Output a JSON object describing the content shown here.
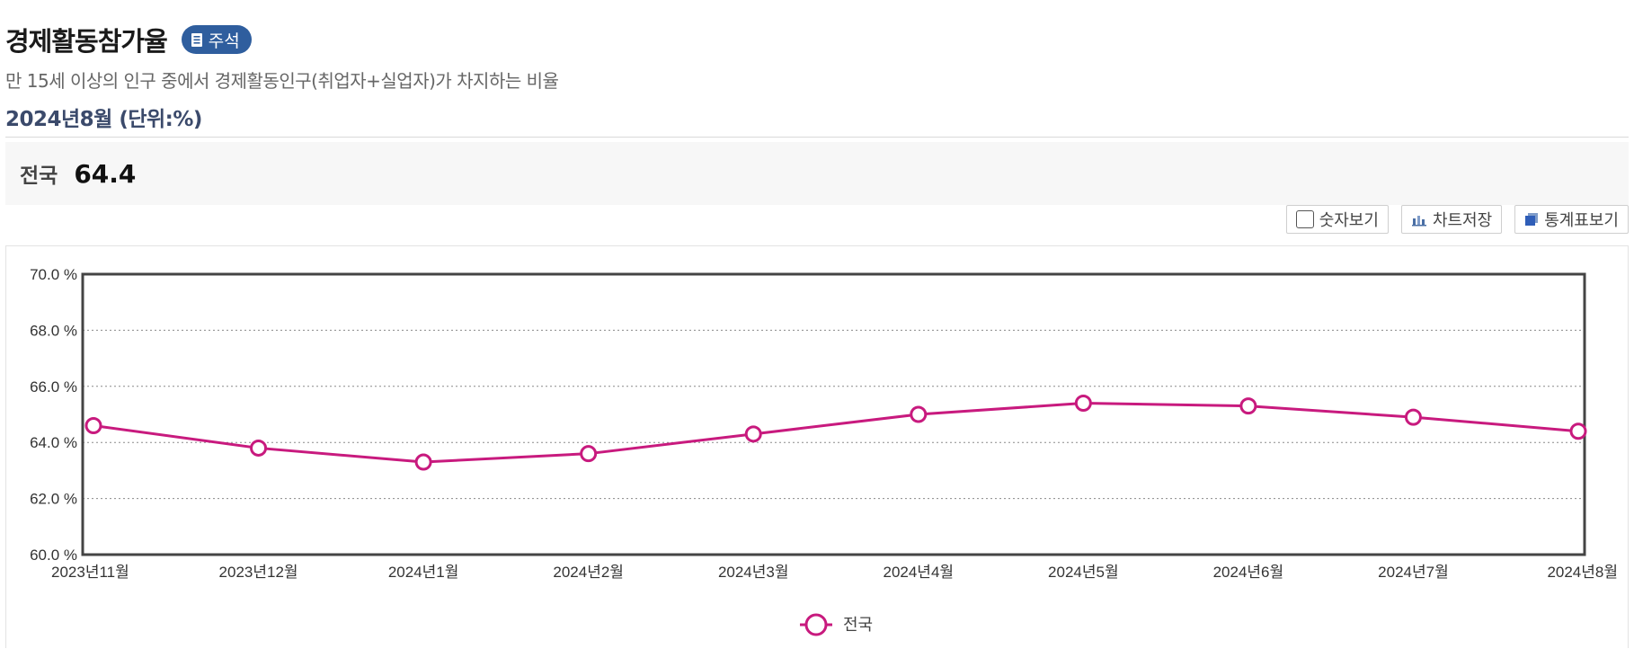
{
  "header": {
    "title": "경제활동참가율",
    "note_label": "주석",
    "subtitle": "만 15세 이상의 인구 중에서 경제활동인구(취업자+실업자)가 차지하는 비율",
    "period": "2024년8월 (단위:%)"
  },
  "summary": {
    "label": "전국",
    "value": "64.4"
  },
  "toolbar": {
    "show_numbers": "숫자보기",
    "save_chart": "차트저장",
    "view_table": "통계표보기"
  },
  "colors": {
    "series": "#c81a7e",
    "badge": "#2f5e9e"
  },
  "chart_data": {
    "type": "line",
    "categories": [
      "2023년11월",
      "2023년12월",
      "2024년1월",
      "2024년2월",
      "2024년3월",
      "2024년4월",
      "2024년5월",
      "2024년6월",
      "2024년7월",
      "2024년8월"
    ],
    "series": [
      {
        "name": "전국",
        "values": [
          64.6,
          63.8,
          63.3,
          63.6,
          64.3,
          65.0,
          65.4,
          65.3,
          64.9,
          64.4
        ]
      }
    ],
    "yticks": [
      "70.0 %",
      "68.0 %",
      "66.0 %",
      "64.0 %",
      "62.0 %",
      "60.0 %"
    ],
    "ylim": [
      60,
      70
    ],
    "grid": true,
    "legend_position": "bottom-center"
  }
}
